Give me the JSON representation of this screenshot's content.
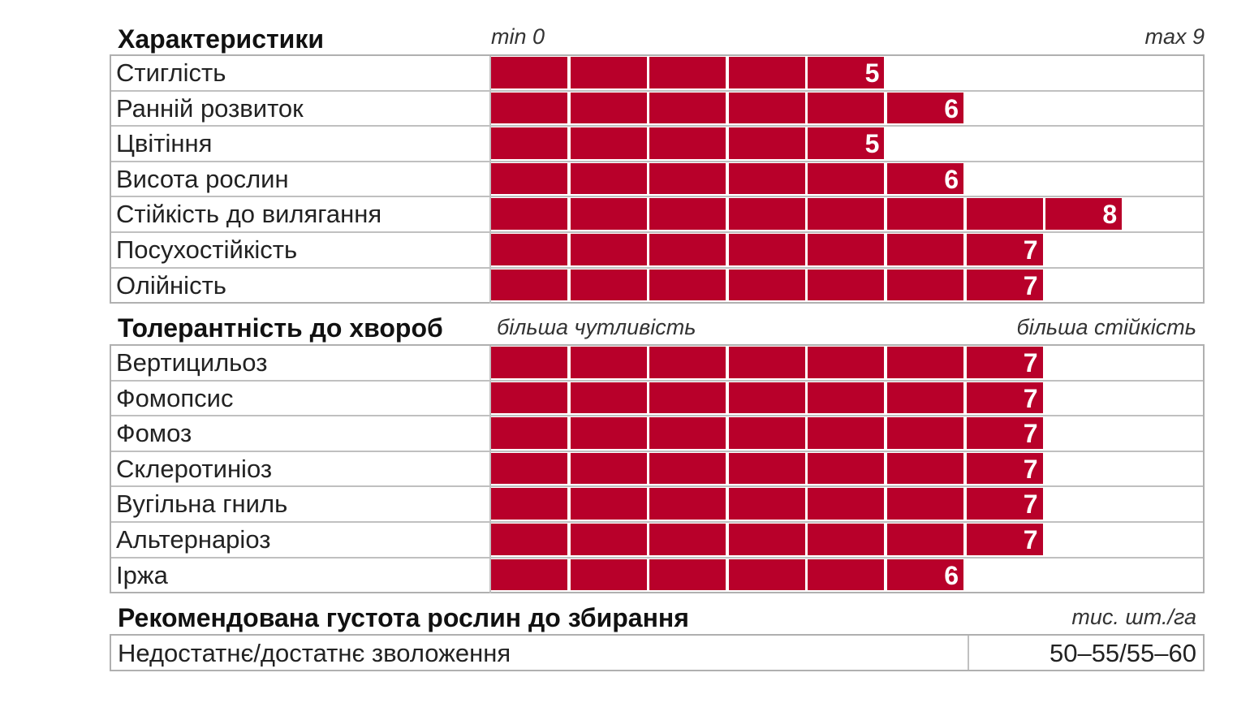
{
  "bar_color": "#b8002a",
  "chart_data": {
    "type": "bar",
    "scale": {
      "min_label": "min 0",
      "max_label": "max 9",
      "min": 0,
      "max": 9
    },
    "sections": [
      {
        "title": "Характеристики",
        "left_note": "min 0",
        "right_note": "max 9",
        "categories": [
          "Стиглість",
          "Ранній розвиток",
          "Цвітіння",
          "Висота рослин",
          "Стійкість до вилягання",
          "Посухостійкість",
          "Олійність"
        ],
        "values": [
          5,
          6,
          5,
          6,
          8,
          7,
          7
        ]
      },
      {
        "title": "Толерантність до хвороб",
        "left_note": "більша чутливість",
        "right_note": "більша стійкість",
        "categories": [
          "Вертицильоз",
          "Фомопсис",
          "Фомоз",
          "Склеротиніоз",
          "Вугільна гниль",
          "Альтернаріоз",
          "Іржа"
        ],
        "values": [
          7,
          7,
          7,
          7,
          7,
          7,
          6
        ]
      }
    ]
  },
  "density": {
    "title": "Рекомендована густота рослин до збирання",
    "unit": "тис. шт./га",
    "label": "Недостатнє/достатнє зволоження",
    "value": "50–55/55–60"
  }
}
